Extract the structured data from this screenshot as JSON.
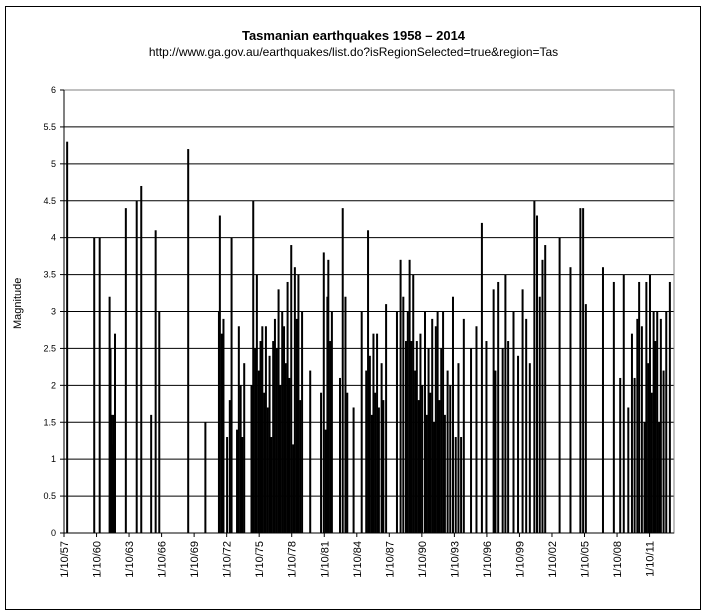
{
  "chart_data": {
    "type": "bar",
    "title": "Tasmanian earthquakes 1958 – 2014",
    "subtitle": "http://www.ga.gov.au/earthquakes/list.do?isRegionSelected=true&region=Tas",
    "xlabel": "",
    "ylabel": "Magnitude",
    "ylim": [
      0,
      6
    ],
    "yticks": [
      "0",
      "0.5",
      "1",
      "1.5",
      "2",
      "2.5",
      "3",
      "3.5",
      "4",
      "4.5",
      "5",
      "5.5",
      "6"
    ],
    "xticks": [
      "1/10/57",
      "1/10/60",
      "1/10/63",
      "1/10/66",
      "1/10/69",
      "1/10/72",
      "1/10/75",
      "1/10/78",
      "1/10/81",
      "1/10/84",
      "1/10/87",
      "1/10/90",
      "1/10/93",
      "1/10/96",
      "1/10/99",
      "1/10/02",
      "1/10/05",
      "1/10/08",
      "1/10/11"
    ],
    "x_start": "1957-10-01",
    "x_end": "2014-01-01",
    "grid": "horizontal",
    "bar_color": "#000000",
    "values": [
      {
        "date": "1958-01",
        "magnitude": 5.3
      },
      {
        "date": "1960-07",
        "magnitude": 4.0
      },
      {
        "date": "1961-01",
        "magnitude": 4.0
      },
      {
        "date": "1961-12",
        "magnitude": 3.2
      },
      {
        "date": "1962-01",
        "magnitude": 2.5
      },
      {
        "date": "1962-02",
        "magnitude": 1.6
      },
      {
        "date": "1962-03",
        "magnitude": 1.2
      },
      {
        "date": "1962-04",
        "magnitude": 1.6
      },
      {
        "date": "1962-06",
        "magnitude": 2.7
      },
      {
        "date": "1963-06",
        "magnitude": 4.4
      },
      {
        "date": "1964-06",
        "magnitude": 4.5
      },
      {
        "date": "1964-11",
        "magnitude": 4.7
      },
      {
        "date": "1965-10",
        "magnitude": 1.6
      },
      {
        "date": "1966-03",
        "magnitude": 4.1
      },
      {
        "date": "1966-07",
        "magnitude": 3.0
      },
      {
        "date": "1969-03",
        "magnitude": 5.2
      },
      {
        "date": "1970-10",
        "magnitude": 1.5
      },
      {
        "date": "1972-01",
        "magnitude": 3.0
      },
      {
        "date": "1972-02",
        "magnitude": 4.3
      },
      {
        "date": "1972-04",
        "magnitude": 2.7
      },
      {
        "date": "1972-06",
        "magnitude": 2.9
      },
      {
        "date": "1972-10",
        "magnitude": 1.3
      },
      {
        "date": "1973-01",
        "magnitude": 1.8
      },
      {
        "date": "1973-03",
        "magnitude": 4.0
      },
      {
        "date": "1973-09",
        "magnitude": 1.4
      },
      {
        "date": "1973-11",
        "magnitude": 2.8
      },
      {
        "date": "1974-01",
        "magnitude": 2.0
      },
      {
        "date": "1974-03",
        "magnitude": 1.3
      },
      {
        "date": "1974-05",
        "magnitude": 2.3
      },
      {
        "date": "1975-01",
        "magnitude": 2.0
      },
      {
        "date": "1975-03",
        "magnitude": 4.5
      },
      {
        "date": "1975-05",
        "magnitude": 2.5
      },
      {
        "date": "1975-07",
        "magnitude": 3.5
      },
      {
        "date": "1975-09",
        "magnitude": 2.2
      },
      {
        "date": "1975-11",
        "magnitude": 2.6
      },
      {
        "date": "1976-01",
        "magnitude": 2.8
      },
      {
        "date": "1976-03",
        "magnitude": 1.9
      },
      {
        "date": "1976-05",
        "magnitude": 2.8
      },
      {
        "date": "1976-07",
        "magnitude": 1.7
      },
      {
        "date": "1976-09",
        "magnitude": 2.4
      },
      {
        "date": "1976-11",
        "magnitude": 1.3
      },
      {
        "date": "1977-01",
        "magnitude": 2.6
      },
      {
        "date": "1977-03",
        "magnitude": 2.9
      },
      {
        "date": "1977-05",
        "magnitude": 2.5
      },
      {
        "date": "1977-07",
        "magnitude": 3.3
      },
      {
        "date": "1977-09",
        "magnitude": 2.0
      },
      {
        "date": "1977-11",
        "magnitude": 3.0
      },
      {
        "date": "1978-01",
        "magnitude": 2.8
      },
      {
        "date": "1978-03",
        "magnitude": 2.3
      },
      {
        "date": "1978-05",
        "magnitude": 3.4
      },
      {
        "date": "1978-07",
        "magnitude": 2.1
      },
      {
        "date": "1978-09",
        "magnitude": 3.9
      },
      {
        "date": "1978-11",
        "magnitude": 1.2
      },
      {
        "date": "1979-01",
        "magnitude": 3.6
      },
      {
        "date": "1979-03",
        "magnitude": 2.9
      },
      {
        "date": "1979-05",
        "magnitude": 3.5
      },
      {
        "date": "1979-07",
        "magnitude": 1.8
      },
      {
        "date": "1979-09",
        "magnitude": 3.0
      },
      {
        "date": "1980-06",
        "magnitude": 2.2
      },
      {
        "date": "1981-06",
        "magnitude": 1.9
      },
      {
        "date": "1981-09",
        "magnitude": 3.8
      },
      {
        "date": "1981-11",
        "magnitude": 1.4
      },
      {
        "date": "1982-01",
        "magnitude": 3.2
      },
      {
        "date": "1982-02",
        "magnitude": 3.7
      },
      {
        "date": "1982-04",
        "magnitude": 2.6
      },
      {
        "date": "1982-06",
        "magnitude": 3.0
      },
      {
        "date": "1983-03",
        "magnitude": 2.1
      },
      {
        "date": "1983-06",
        "magnitude": 4.4
      },
      {
        "date": "1983-09",
        "magnitude": 3.2
      },
      {
        "date": "1983-11",
        "magnitude": 1.9
      },
      {
        "date": "1984-06",
        "magnitude": 1.7
      },
      {
        "date": "1985-03",
        "magnitude": 3.0
      },
      {
        "date": "1985-08",
        "magnitude": 2.2
      },
      {
        "date": "1985-10",
        "magnitude": 4.1
      },
      {
        "date": "1985-12",
        "magnitude": 2.4
      },
      {
        "date": "1986-02",
        "magnitude": 1.6
      },
      {
        "date": "1986-04",
        "magnitude": 2.7
      },
      {
        "date": "1986-06",
        "magnitude": 1.9
      },
      {
        "date": "1986-08",
        "magnitude": 2.7
      },
      {
        "date": "1986-10",
        "magnitude": 1.7
      },
      {
        "date": "1987-01",
        "magnitude": 2.3
      },
      {
        "date": "1987-03",
        "magnitude": 1.8
      },
      {
        "date": "1987-06",
        "magnitude": 3.1
      },
      {
        "date": "1988-06",
        "magnitude": 3.0
      },
      {
        "date": "1988-10",
        "magnitude": 3.7
      },
      {
        "date": "1989-01",
        "magnitude": 3.2
      },
      {
        "date": "1989-04",
        "magnitude": 2.6
      },
      {
        "date": "1989-06",
        "magnitude": 3.0
      },
      {
        "date": "1989-08",
        "magnitude": 3.7
      },
      {
        "date": "1989-10",
        "magnitude": 2.6
      },
      {
        "date": "1989-12",
        "magnitude": 3.5
      },
      {
        "date": "1990-02",
        "magnitude": 2.2
      },
      {
        "date": "1990-04",
        "magnitude": 2.6
      },
      {
        "date": "1990-06",
        "magnitude": 1.8
      },
      {
        "date": "1990-08",
        "magnitude": 2.7
      },
      {
        "date": "1990-10",
        "magnitude": 2.0
      },
      {
        "date": "1991-01",
        "magnitude": 3.0
      },
      {
        "date": "1991-03",
        "magnitude": 1.6
      },
      {
        "date": "1991-05",
        "magnitude": 2.5
      },
      {
        "date": "1991-07",
        "magnitude": 1.9
      },
      {
        "date": "1991-09",
        "magnitude": 2.9
      },
      {
        "date": "1991-11",
        "magnitude": 1.5
      },
      {
        "date": "1992-01",
        "magnitude": 2.8
      },
      {
        "date": "1992-03",
        "magnitude": 3.0
      },
      {
        "date": "1992-05",
        "magnitude": 1.8
      },
      {
        "date": "1992-07",
        "magnitude": 2.5
      },
      {
        "date": "1992-09",
        "magnitude": 3.0
      },
      {
        "date": "1992-11",
        "magnitude": 1.6
      },
      {
        "date": "1993-02",
        "magnitude": 2.2
      },
      {
        "date": "1993-05",
        "magnitude": 2.0
      },
      {
        "date": "1993-08",
        "magnitude": 3.2
      },
      {
        "date": "1993-11",
        "magnitude": 1.3
      },
      {
        "date": "1994-02",
        "magnitude": 2.3
      },
      {
        "date": "1994-05",
        "magnitude": 1.3
      },
      {
        "date": "1994-08",
        "magnitude": 2.9
      },
      {
        "date": "1995-04",
        "magnitude": 2.5
      },
      {
        "date": "1995-10",
        "magnitude": 2.8
      },
      {
        "date": "1996-04",
        "magnitude": 4.2
      },
      {
        "date": "1996-09",
        "magnitude": 2.6
      },
      {
        "date": "1997-05",
        "magnitude": 3.3
      },
      {
        "date": "1997-07",
        "magnitude": 2.2
      },
      {
        "date": "1997-10",
        "magnitude": 3.4
      },
      {
        "date": "1998-03",
        "magnitude": 2.5
      },
      {
        "date": "1998-06",
        "magnitude": 3.5
      },
      {
        "date": "1998-09",
        "magnitude": 2.6
      },
      {
        "date": "1999-03",
        "magnitude": 3.0
      },
      {
        "date": "1999-08",
        "magnitude": 2.4
      },
      {
        "date": "2000-01",
        "magnitude": 3.3
      },
      {
        "date": "2000-05",
        "magnitude": 2.9
      },
      {
        "date": "2000-09",
        "magnitude": 2.3
      },
      {
        "date": "2001-02",
        "magnitude": 4.5
      },
      {
        "date": "2001-05",
        "magnitude": 4.3
      },
      {
        "date": "2001-08",
        "magnitude": 3.2
      },
      {
        "date": "2001-11",
        "magnitude": 3.7
      },
      {
        "date": "2002-02",
        "magnitude": 3.9
      },
      {
        "date": "2003-06",
        "magnitude": 4.0
      },
      {
        "date": "2004-06",
        "magnitude": 3.6
      },
      {
        "date": "2005-05",
        "magnitude": 4.4
      },
      {
        "date": "2005-08",
        "magnitude": 4.4
      },
      {
        "date": "2005-11",
        "magnitude": 3.1
      },
      {
        "date": "2007-06",
        "magnitude": 3.6
      },
      {
        "date": "2008-06",
        "magnitude": 3.4
      },
      {
        "date": "2009-01",
        "magnitude": 2.1
      },
      {
        "date": "2009-05",
        "magnitude": 3.5
      },
      {
        "date": "2009-10",
        "magnitude": 1.7
      },
      {
        "date": "2010-02",
        "magnitude": 2.7
      },
      {
        "date": "2010-05",
        "magnitude": 2.1
      },
      {
        "date": "2010-08",
        "magnitude": 2.9
      },
      {
        "date": "2010-10",
        "magnitude": 3.4
      },
      {
        "date": "2011-01",
        "magnitude": 2.8
      },
      {
        "date": "2011-04",
        "magnitude": 1.5
      },
      {
        "date": "2011-06",
        "magnitude": 3.4
      },
      {
        "date": "2011-08",
        "magnitude": 2.3
      },
      {
        "date": "2011-10",
        "magnitude": 3.5
      },
      {
        "date": "2011-12",
        "magnitude": 1.9
      },
      {
        "date": "2012-02",
        "magnitude": 3.0
      },
      {
        "date": "2012-04",
        "magnitude": 2.6
      },
      {
        "date": "2012-06",
        "magnitude": 3.0
      },
      {
        "date": "2012-08",
        "magnitude": 1.5
      },
      {
        "date": "2012-10",
        "magnitude": 2.9
      },
      {
        "date": "2013-01",
        "magnitude": 2.2
      },
      {
        "date": "2013-04",
        "magnitude": 3.0
      },
      {
        "date": "2013-08",
        "magnitude": 3.4
      }
    ]
  }
}
